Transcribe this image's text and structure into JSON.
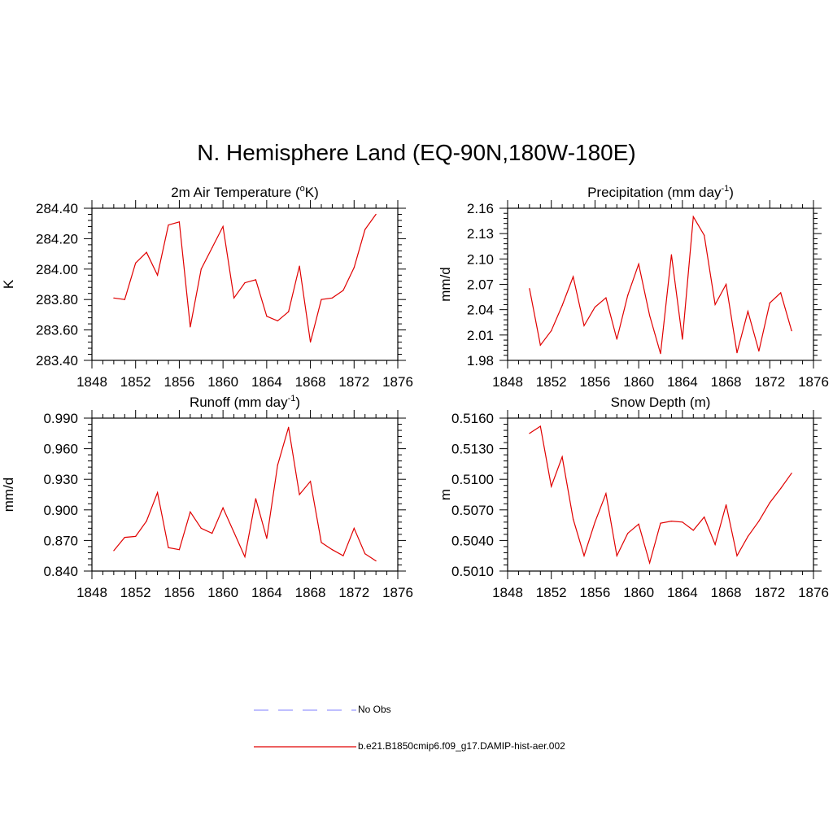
{
  "figure": {
    "title": "N. Hemisphere Land (EQ-90N,180W-180E)"
  },
  "colors": {
    "model": "#e00000",
    "obs": "#9999ff"
  },
  "legend": [
    {
      "label": "No Obs",
      "style": "dashed",
      "color": "#9999ff"
    },
    {
      "label": "b.e21.B1850cmip6.f09_g17.DAMIP-hist-aer.002",
      "style": "solid",
      "color": "#e00000"
    }
  ],
  "chart_data": [
    {
      "type": "line",
      "title": "2m Air Temperature (oK)",
      "title_parts": [
        "2m Air Temperature (",
        "o",
        "K)"
      ],
      "ylabel": "K",
      "xlim": [
        1848,
        1876
      ],
      "ylim": [
        283.4,
        284.4
      ],
      "xticks": [
        "1848",
        "1852",
        "1856",
        "1860",
        "1864",
        "1868",
        "1872",
        "1876"
      ],
      "yticks": [
        "283.40",
        "283.60",
        "283.80",
        "284.00",
        "284.20",
        "284.40"
      ],
      "x": [
        1850,
        1851,
        1852,
        1853,
        1854,
        1855,
        1856,
        1857,
        1858,
        1859,
        1860,
        1861,
        1862,
        1863,
        1864,
        1865,
        1866,
        1867,
        1868,
        1869,
        1870,
        1871,
        1872,
        1873,
        1874
      ],
      "series": [
        {
          "name": "b.e21.B1850cmip6.f09_g17.DAMIP-hist-aer.002",
          "values": [
            283.81,
            283.8,
            284.04,
            284.11,
            283.96,
            284.29,
            284.31,
            283.62,
            284.0,
            284.14,
            284.28,
            283.81,
            283.91,
            283.93,
            283.69,
            283.66,
            283.72,
            284.02,
            283.52,
            283.8,
            283.81,
            283.86,
            284.01,
            284.26,
            284.36
          ]
        }
      ]
    },
    {
      "type": "line",
      "title": "Precipitation (mm day-1)",
      "title_parts": [
        "Precipitation (mm day",
        "-1",
        ")"
      ],
      "ylabel": "mm/d",
      "xlim": [
        1848,
        1876
      ],
      "ylim": [
        1.98,
        2.16
      ],
      "xticks": [
        "1848",
        "1852",
        "1856",
        "1860",
        "1864",
        "1868",
        "1872",
        "1876"
      ],
      "yticks": [
        "1.98",
        "2.01",
        "2.04",
        "2.07",
        "2.10",
        "2.13",
        "2.16"
      ],
      "x": [
        1850,
        1851,
        1852,
        1853,
        1854,
        1855,
        1856,
        1857,
        1858,
        1859,
        1860,
        1861,
        1862,
        1863,
        1864,
        1865,
        1866,
        1867,
        1868,
        1869,
        1870,
        1871,
        1872,
        1873,
        1874
      ],
      "series": [
        {
          "name": "b.e21.B1850cmip6.f09_g17.DAMIP-hist-aer.002",
          "values": [
            2.065,
            1.998,
            2.015,
            2.045,
            2.079,
            2.021,
            2.043,
            2.054,
            2.005,
            2.057,
            2.094,
            2.033,
            1.988,
            2.105,
            2.005,
            2.15,
            2.128,
            2.046,
            2.07,
            1.989,
            2.038,
            1.991,
            2.048,
            2.06,
            2.015
          ]
        }
      ]
    },
    {
      "type": "line",
      "title": "Runoff (mm day-1)",
      "title_parts": [
        "Runoff (mm day",
        "-1",
        ")"
      ],
      "ylabel": "mm/d",
      "xlim": [
        1848,
        1876
      ],
      "ylim": [
        0.84,
        0.99
      ],
      "xticks": [
        "1848",
        "1852",
        "1856",
        "1860",
        "1864",
        "1868",
        "1872",
        "1876"
      ],
      "yticks": [
        "0.840",
        "0.870",
        "0.900",
        "0.930",
        "0.960",
        "0.990"
      ],
      "x": [
        1850,
        1851,
        1852,
        1853,
        1854,
        1855,
        1856,
        1857,
        1858,
        1859,
        1860,
        1861,
        1862,
        1863,
        1864,
        1865,
        1866,
        1867,
        1868,
        1869,
        1870,
        1871,
        1872,
        1873,
        1874
      ],
      "series": [
        {
          "name": "b.e21.B1850cmip6.f09_g17.DAMIP-hist-aer.002",
          "values": [
            0.86,
            0.873,
            0.874,
            0.889,
            0.917,
            0.863,
            0.861,
            0.898,
            0.882,
            0.877,
            0.902,
            0.878,
            0.854,
            0.911,
            0.872,
            0.944,
            0.981,
            0.915,
            0.928,
            0.868,
            0.861,
            0.855,
            0.882,
            0.857,
            0.85
          ]
        }
      ]
    },
    {
      "type": "line",
      "title": "Snow Depth (m)",
      "title_parts": [
        "Snow Depth (m)",
        "",
        ""
      ],
      "ylabel": "m",
      "xlim": [
        1848,
        1876
      ],
      "ylim": [
        0.501,
        0.516
      ],
      "xticks": [
        "1848",
        "1852",
        "1856",
        "1860",
        "1864",
        "1868",
        "1872",
        "1876"
      ],
      "yticks": [
        "0.5010",
        "0.5040",
        "0.5070",
        "0.5100",
        "0.5130",
        "0.5160"
      ],
      "x": [
        1850,
        1851,
        1852,
        1853,
        1854,
        1855,
        1856,
        1857,
        1858,
        1859,
        1860,
        1861,
        1862,
        1863,
        1864,
        1865,
        1866,
        1867,
        1868,
        1869,
        1870,
        1871,
        1872,
        1873,
        1874
      ],
      "series": [
        {
          "name": "b.e21.B1850cmip6.f09_g17.DAMIP-hist-aer.002",
          "values": [
            0.5145,
            0.5152,
            0.5093,
            0.5122,
            0.5061,
            0.5025,
            0.5058,
            0.5086,
            0.5025,
            0.5047,
            0.5056,
            0.5018,
            0.5057,
            0.5059,
            0.5058,
            0.505,
            0.5063,
            0.5036,
            0.5075,
            0.5025,
            0.5044,
            0.5059,
            0.5077,
            0.5091,
            0.5106
          ]
        }
      ]
    }
  ]
}
